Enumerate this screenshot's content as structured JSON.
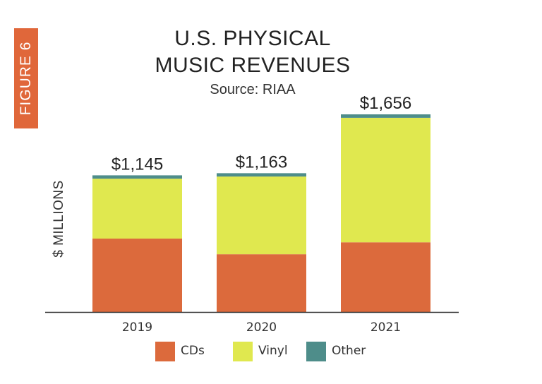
{
  "figure_label": "FIGURE 6",
  "colors": {
    "accent": "#e0673a",
    "cds": "#dc6a3c",
    "vinyl": "#e0e84f",
    "other": "#4e8d8a",
    "axis": "#333333"
  },
  "chart_data": {
    "type": "bar",
    "stacked": true,
    "title_line1": "U.S. PHYSICAL",
    "title_line2": "MUSIC REVENUES",
    "subtitle": "Source: RIAA",
    "xlabel": "",
    "ylabel": "$ MILLIONS",
    "categories": [
      "2019",
      "2020",
      "2021"
    ],
    "totals_labels": [
      "$1,145",
      "$1,163",
      "$1,656"
    ],
    "totals": [
      1145,
      1163,
      1656
    ],
    "series": [
      {
        "name": "CDs",
        "values": [
          615,
          484,
          584
        ]
      },
      {
        "name": "Vinyl",
        "values": [
          502,
          651,
          1043
        ]
      },
      {
        "name": "Other",
        "values": [
          28,
          28,
          29
        ]
      }
    ],
    "ylim": [
      0,
      1800
    ],
    "grid": false,
    "legend_position": "bottom"
  }
}
